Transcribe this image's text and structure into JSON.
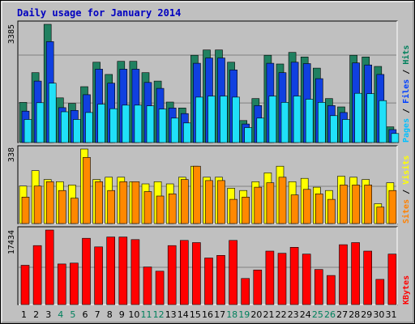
{
  "chart_data": {
    "type": "bar",
    "title": "Daily usage for January 2014",
    "days": [
      "1",
      "2",
      "3",
      "4",
      "5",
      "6",
      "7",
      "8",
      "9",
      "10",
      "11",
      "12",
      "13",
      "14",
      "15",
      "16",
      "17",
      "18",
      "19",
      "20",
      "21",
      "22",
      "23",
      "24",
      "25",
      "26",
      "27",
      "28",
      "29",
      "30",
      "31"
    ],
    "weekend_days": [
      "4",
      "5",
      "11",
      "12",
      "18",
      "19",
      "25",
      "26"
    ],
    "panels": [
      {
        "name": "hits-files-pages",
        "ymax_label": "3385",
        "ymax": 3385,
        "legend": [
          {
            "text": "Pages",
            "color": "#00c0ff"
          },
          {
            "text": " / ",
            "color": "#000000"
          },
          {
            "text": "Files",
            "color": "#0040ff"
          },
          {
            "text": " / ",
            "color": "#000000"
          },
          {
            "text": "Hits",
            "color": "#00805c"
          }
        ],
        "series": [
          {
            "name": "Hits",
            "color": "#208060",
            "values": [
              1150,
              2000,
              3385,
              1280,
              1120,
              1600,
              2300,
              1950,
              2325,
              2325,
              2000,
              1760,
              1160,
              990,
              2500,
              2650,
              2650,
              2300,
              630,
              1260,
              2500,
              2250,
              2580,
              2450,
              2130,
              1260,
              1020,
              2500,
              2450,
              2180,
              450
            ]
          },
          {
            "name": "Files",
            "color": "#1040e0",
            "values": [
              900,
              1760,
              2890,
              1000,
              920,
              1370,
              2100,
              1700,
              2100,
              2100,
              1720,
              1550,
              990,
              830,
              2270,
              2420,
              2420,
              2080,
              530,
              1060,
              2270,
              2000,
              2300,
              2260,
              1830,
              1060,
              860,
              2280,
              2220,
              1950,
              370
            ]
          },
          {
            "name": "Pages",
            "color": "#20e0f8",
            "values": [
              660,
              1140,
              1700,
              880,
              660,
              860,
              1100,
              970,
              1070,
              1070,
              1050,
              960,
              700,
              560,
              1300,
              1330,
              1330,
              1300,
              430,
              700,
              1330,
              1150,
              1330,
              1240,
              1150,
              770,
              660,
              1410,
              1400,
              1200,
              260
            ]
          }
        ]
      },
      {
        "name": "visits-sites",
        "ymax_label": "338",
        "ymax": 338,
        "legend": [
          {
            "text": "Sites",
            "color": "#ff8000"
          },
          {
            "text": " / ",
            "color": "#000000"
          },
          {
            "text": "Visits",
            "color": "#ffff00"
          }
        ],
        "series": [
          {
            "name": "Visits",
            "color": "#ffff00",
            "values": [
              170,
              240,
              200,
              190,
              175,
              338,
              200,
              210,
              210,
              190,
              180,
              190,
              180,
              210,
              260,
              210,
              210,
              160,
              150,
              190,
              230,
              260,
              190,
              205,
              165,
              150,
              215,
              210,
              200,
              90,
              185
            ]
          },
          {
            "name": "Sites",
            "color": "#ff8800",
            "values": [
              120,
              170,
              190,
              150,
              115,
              300,
              190,
              150,
              190,
              190,
              145,
              125,
              135,
              200,
              260,
              195,
              195,
              110,
              120,
              165,
              185,
              210,
              130,
              155,
              135,
              110,
              175,
              175,
              175,
              75,
              150
            ]
          }
        ]
      },
      {
        "name": "kbytes",
        "ymax_label": "17434",
        "ymax": 17434,
        "legend": [
          {
            "text": "KBytes",
            "color": "#ff0000"
          }
        ],
        "series": [
          {
            "name": "KBytes",
            "color": "#ff0000",
            "values": [
              9200,
              13800,
              17434,
              9500,
              9700,
              15500,
              13500,
              15800,
              15800,
              15200,
              8800,
              7800,
              13800,
              15000,
              14500,
              10900,
              11500,
              15000,
              6100,
              8100,
              12500,
              12000,
              13400,
              11800,
              8200,
              6800,
              14000,
              14500,
              12500,
              5900,
              11800
            ]
          }
        ]
      }
    ]
  }
}
